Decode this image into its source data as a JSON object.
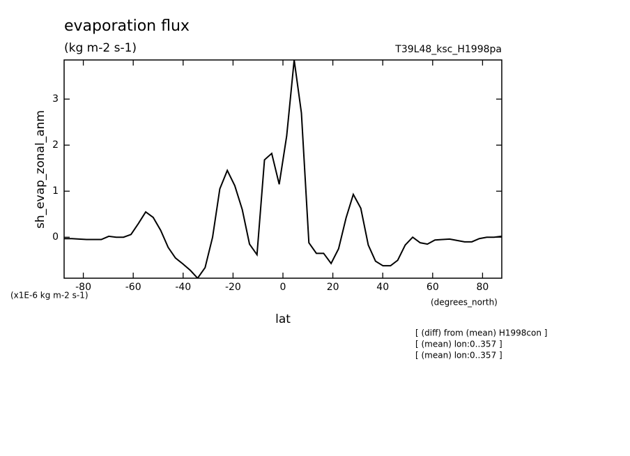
{
  "chart_data": {
    "type": "line",
    "title": "evaporation flux",
    "subtitle": "(kg m-2 s-1)",
    "run_label": "T39L48_ksc_H1998pa",
    "ylabel": "sh_evap_zonal_anm",
    "y_unit": "(x1E-6 kg m-2 s-1)",
    "xlabel": "lat",
    "x_unit": "(degrees_north)",
    "annotations": [
      "[ (diff) from (mean) H1998con ]",
      "[ (mean) lon:0..357 ]",
      "[ (mean) lon:0..357 ]"
    ],
    "x": [
      -87.6,
      -84.6,
      -81.7,
      -78.7,
      -75.7,
      -72.8,
      -69.8,
      -66.8,
      -63.9,
      -60.9,
      -57.9,
      -55.0,
      -52.0,
      -49.0,
      -46.0,
      -43.1,
      -40.1,
      -37.1,
      -34.2,
      -31.2,
      -28.2,
      -25.3,
      -22.3,
      -19.3,
      -16.3,
      -13.4,
      -10.4,
      -7.4,
      -4.5,
      -1.5,
      1.5,
      4.5,
      7.4,
      10.4,
      13.4,
      16.3,
      19.3,
      22.3,
      25.3,
      28.2,
      31.2,
      34.2,
      37.1,
      40.1,
      43.1,
      46.0,
      49.0,
      52.0,
      55.0,
      57.9,
      60.9,
      63.9,
      66.8,
      69.8,
      72.8,
      75.7,
      78.7,
      81.7,
      84.6,
      87.6
    ],
    "values": [
      -0.03,
      -0.03,
      -0.04,
      -0.05,
      -0.05,
      -0.05,
      0.02,
      0.0,
      0.0,
      0.06,
      0.3,
      0.55,
      0.43,
      0.15,
      -0.22,
      -0.45,
      -0.58,
      -0.72,
      -0.89,
      -0.66,
      0.0,
      1.05,
      1.45,
      1.12,
      0.6,
      -0.15,
      -0.38,
      1.68,
      1.82,
      1.15,
      2.2,
      3.85,
      2.7,
      -0.12,
      -0.35,
      -0.35,
      -0.57,
      -0.25,
      0.42,
      0.93,
      0.63,
      -0.17,
      -0.52,
      -0.62,
      -0.62,
      -0.5,
      -0.17,
      0.0,
      -0.12,
      -0.15,
      -0.06,
      -0.05,
      -0.04,
      -0.07,
      -0.1,
      -0.1,
      -0.03,
      0.0,
      0.0,
      0.02
    ],
    "color": "#000000",
    "xlim": [
      -87.7,
      87.7
    ],
    "ylim": [
      -0.89,
      3.85
    ],
    "xticks": [
      -80,
      -60,
      -40,
      -20,
      0,
      20,
      40,
      60,
      80
    ],
    "yticks": [
      0,
      1,
      2,
      3
    ]
  }
}
